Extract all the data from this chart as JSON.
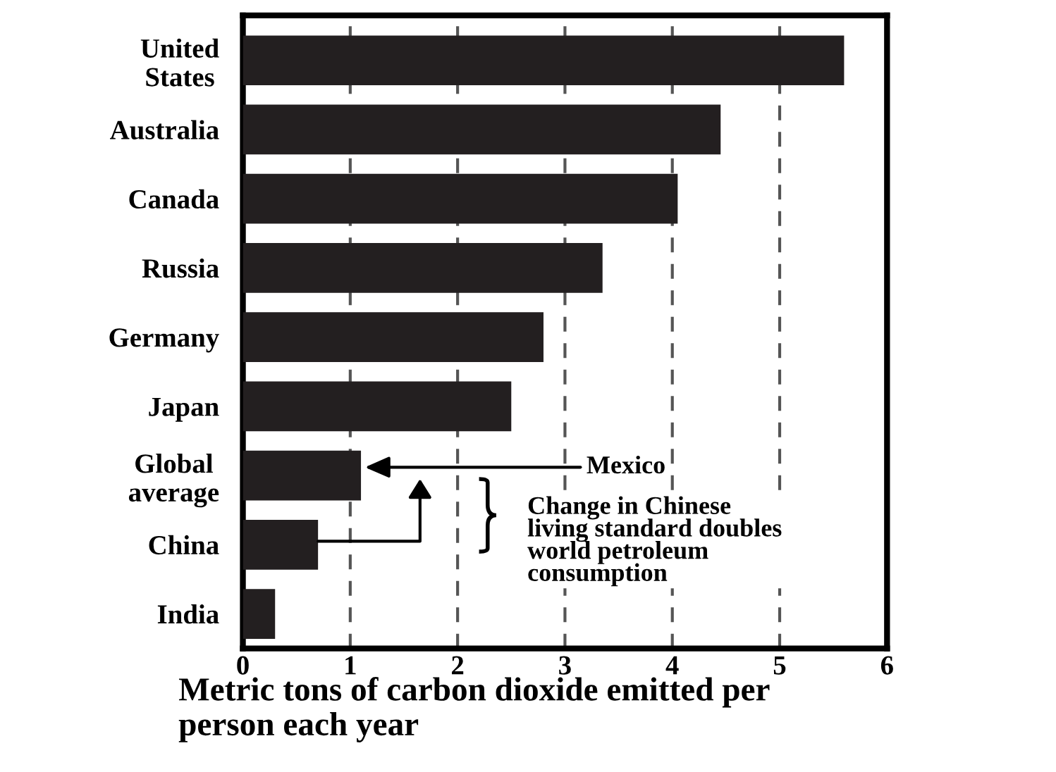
{
  "chart_data": {
    "type": "bar",
    "orientation": "horizontal",
    "categories": [
      "United\nStates",
      "Australia",
      "Canada",
      "Russia",
      "Germany",
      "Japan",
      "Global\naverage",
      "China",
      "India"
    ],
    "values": [
      5.6,
      4.45,
      4.05,
      3.35,
      2.8,
      2.5,
      1.1,
      0.7,
      0.3
    ],
    "color": "#231f20",
    "xlim": [
      0,
      6
    ],
    "xticks": [
      0,
      1,
      2,
      3,
      4,
      5,
      6
    ],
    "xlabel": "Metric tons of carbon dioxide emitted per\nperson each year",
    "grid": "x",
    "line_style": "dashed",
    "annotations": [
      "Mexico",
      "Change in Chinese\nliving standard doubles\nworld petroleum\nconsumption"
    ]
  }
}
